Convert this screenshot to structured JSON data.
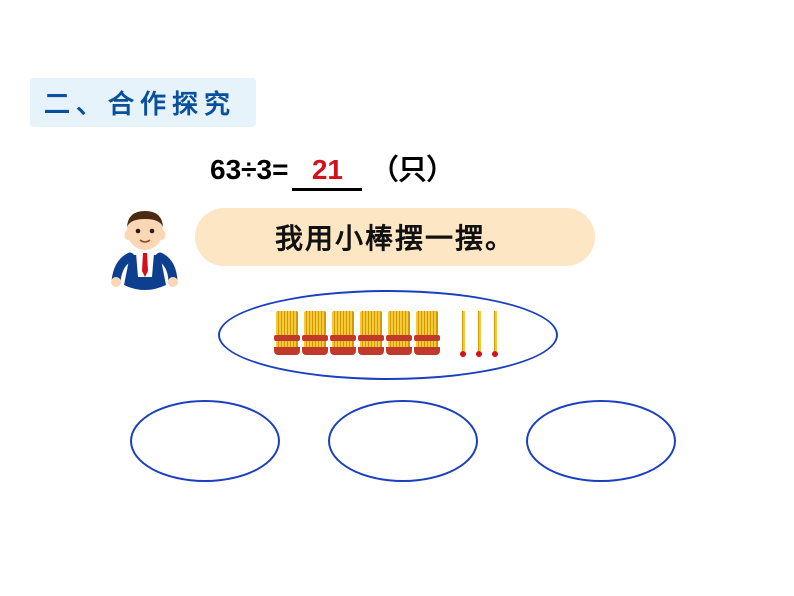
{
  "section_header": "二、合作探究",
  "equation": {
    "lhs": "63÷3=",
    "answer": "21",
    "unit": "（只）"
  },
  "bubble_text": "我用小棒摆一摆。",
  "colors": {
    "header_bg": "#e6f3fa",
    "header_text": "#0a4f9c",
    "answer": "#d4111b",
    "bubble_bg": "#fde6c3",
    "oval_border": "#1a3fbf",
    "stick_yellow": "#f5c93a",
    "stick_red": "#c0392b"
  },
  "sticks_diagram": {
    "bundle_count": 6,
    "single_count": 3,
    "empty_groups": 3
  },
  "teacher": {
    "name": "teacher-boy",
    "skin": "#fbd7b5",
    "hair": "#4a2a10",
    "shirt": "#ffffff",
    "vest": "#0d3f8f",
    "tie": "#d4111b"
  }
}
